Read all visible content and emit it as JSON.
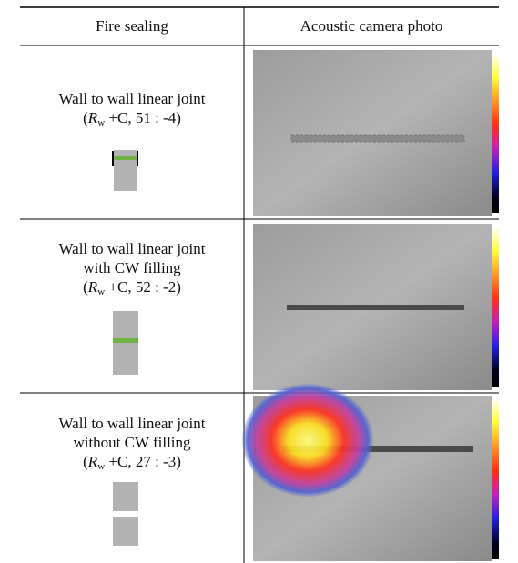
{
  "header": [
    "Fire sealing",
    "Acoustic camera photo"
  ],
  "rows": [
    {
      "lines": [
        "Wall to wall linear joint"
      ],
      "rating": [
        "(",
        "R",
        "w",
        " +C, 51 : -4)"
      ]
    },
    {
      "lines": [
        "Wall to wall linear joint",
        "with CW filling"
      ],
      "rating": [
        "(",
        "R",
        "w",
        " +C, 52 : -2)"
      ]
    },
    {
      "lines": [
        "Wall to wall linear joint",
        "without CW filling"
      ],
      "rating": [
        "(",
        "R",
        "w",
        " +C, 27 : -3)"
      ]
    }
  ]
}
